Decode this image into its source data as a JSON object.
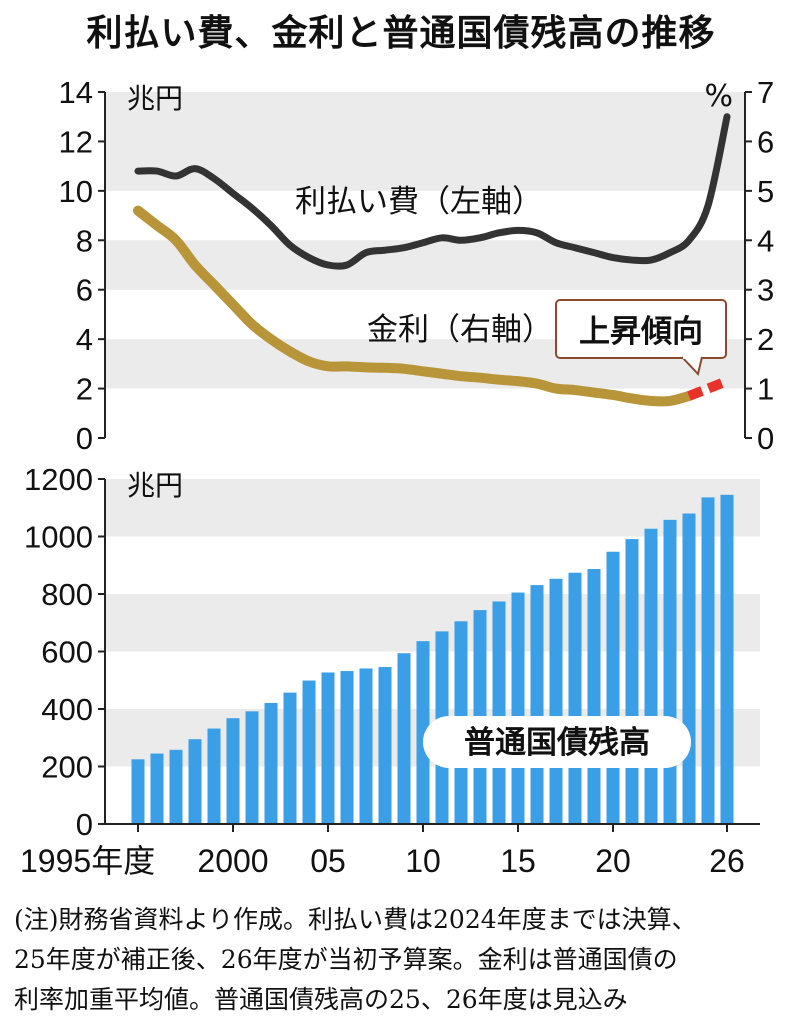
{
  "title": "利払い費、金利と普通国債残高の推移",
  "colors": {
    "interest_payment": "#333333",
    "interest_rate": "#b89538",
    "interest_rate_projected": "#e8322a",
    "bond_balance": "#3b9fe8",
    "band": "#ebebeb"
  },
  "chart_data": [
    {
      "type": "line",
      "x": [
        1995,
        1996,
        1997,
        1998,
        1999,
        2000,
        2001,
        2002,
        2003,
        2004,
        2005,
        2006,
        2007,
        2008,
        2009,
        2010,
        2011,
        2012,
        2013,
        2014,
        2015,
        2016,
        2017,
        2018,
        2019,
        2020,
        2021,
        2022,
        2023,
        2024,
        2025,
        2026
      ],
      "series": [
        {
          "name": "利払い費",
          "label": "利払い費（左軸）",
          "axis": "left",
          "values": [
            10.8,
            10.8,
            10.6,
            10.9,
            10.5,
            9.9,
            9.3,
            8.6,
            7.8,
            7.3,
            7.0,
            7.0,
            7.5,
            7.6,
            7.7,
            7.9,
            8.1,
            8.0,
            8.1,
            8.3,
            8.4,
            8.3,
            7.9,
            7.7,
            7.5,
            7.3,
            7.2,
            7.2,
            7.5,
            8.0,
            9.4,
            13.0
          ]
        },
        {
          "name": "金利",
          "label": "金利（右軸）",
          "axis": "right",
          "values": [
            4.6,
            4.3,
            4.0,
            3.5,
            3.1,
            2.7,
            2.3,
            2.0,
            1.75,
            1.55,
            1.45,
            1.45,
            1.43,
            1.42,
            1.4,
            1.35,
            1.3,
            1.25,
            1.22,
            1.18,
            1.15,
            1.1,
            1.0,
            0.97,
            0.92,
            0.87,
            0.8,
            0.75,
            0.75,
            0.85,
            1.0,
            1.15
          ],
          "projected_from": 2024
        }
      ],
      "left_axis": {
        "unit": "兆円",
        "ticks": [
          "0",
          "2",
          "4",
          "6",
          "8",
          "10",
          "12",
          "14"
        ],
        "range": [
          0,
          14
        ]
      },
      "right_axis": {
        "unit": "%",
        "ticks": [
          "0",
          "1",
          "2",
          "3",
          "4",
          "5",
          "6",
          "7"
        ],
        "range": [
          0,
          7
        ]
      },
      "callout": "上昇傾向"
    },
    {
      "type": "bar",
      "name": "普通国債残高",
      "label": "普通国債残高",
      "x": [
        1995,
        1996,
        1997,
        1998,
        1999,
        2000,
        2001,
        2002,
        2003,
        2004,
        2005,
        2006,
        2007,
        2008,
        2009,
        2010,
        2011,
        2012,
        2013,
        2014,
        2015,
        2016,
        2017,
        2018,
        2019,
        2020,
        2021,
        2022,
        2023,
        2024,
        2025,
        2026
      ],
      "values": [
        225,
        245,
        258,
        295,
        332,
        368,
        392,
        421,
        457,
        499,
        527,
        532,
        541,
        546,
        594,
        636,
        670,
        705,
        744,
        774,
        805,
        831,
        853,
        874,
        887,
        947,
        991,
        1027,
        1058,
        1080,
        1136,
        1145
      ],
      "y_axis": {
        "unit": "兆円",
        "ticks": [
          "0",
          "200",
          "400",
          "600",
          "800",
          "1000",
          "1200"
        ],
        "range": [
          0,
          1200
        ]
      }
    }
  ],
  "x_axis_labels": [
    {
      "year": 1995,
      "text": "1995年度"
    },
    {
      "year": 2000,
      "text": "2000"
    },
    {
      "year": 2005,
      "text": "05"
    },
    {
      "year": 2010,
      "text": "10"
    },
    {
      "year": 2015,
      "text": "15"
    },
    {
      "year": 2020,
      "text": "20"
    },
    {
      "year": 2026,
      "text": "26"
    }
  ],
  "note": [
    "(注)財務省資料より作成。利払い費は2024年度までは決算、",
    "25年度が補正後、26年度が当初予算案。金利は普通国債の",
    "利率加重平均値。普通国債残高の25、26年度は見込み"
  ]
}
